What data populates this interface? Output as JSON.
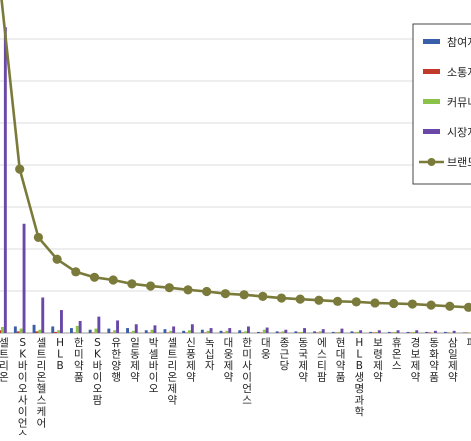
{
  "chart_data": {
    "type": "bar",
    "legend_position": "right",
    "grid": true,
    "categories": [
      "셀트리온",
      "SK바이오사이언스",
      "셀트리온헬스케어",
      "HLB",
      "한미약품",
      "SK바이오팜",
      "유한양행",
      "일동제약",
      "박셀바이오",
      "셀트리온제약",
      "신풍제약",
      "녹십자",
      "대웅제약",
      "한미사이언스",
      "대웅",
      "종근당",
      "동국제약",
      "에스티팜",
      "현대약품",
      "HLB생명과학",
      "보령제약",
      "휴온스",
      "경보제약",
      "동화약품",
      "삼일제약",
      "파마리서치"
    ],
    "visible_labels": [
      "셀트리온",
      "SK바이오사이언스",
      "셀트리온헬스케어",
      "HLB",
      "한미약품",
      "SK바이오팜",
      "유한양행",
      "일동제약",
      "박셀바이오",
      "셀트리온제약",
      "신풍제약",
      "녹십자",
      "대웅제약",
      "한미사이언스",
      "대웅",
      "종근당",
      "동국제약",
      "에스티팜",
      "현대약품",
      "HLB생명과학",
      "보령제약",
      "휴온스",
      "경보제약",
      "동화약품",
      "삼일제약",
      "파"
    ],
    "series": [
      {
        "name": "참여지",
        "color": "#3a5ea8",
        "values": [
          3.2,
          1.2,
          1.5,
          1.2,
          0.9,
          0.6,
          0.8,
          0.9,
          0.5,
          0.7,
          0.4,
          0.6,
          0.4,
          0.5,
          0.2,
          0.3,
          0.3,
          0.3,
          0.2,
          0.3,
          0.2,
          0.2,
          0.2,
          0.2,
          0.2,
          0.1
        ]
      },
      {
        "name": "소통지",
        "color": "#c0392b",
        "values": [
          0.5,
          0.3,
          0.3,
          0.2,
          0.1,
          0.1,
          0.1,
          0.1,
          0.1,
          0.1,
          0.1,
          0.1,
          0.1,
          0.1,
          0.1,
          0.1,
          0.1,
          0.1,
          0.1,
          0.1,
          0.1,
          0.1,
          0.1,
          0.1,
          0.1,
          0.1
        ]
      },
      {
        "name": "커뮤니",
        "color": "#8bc34a",
        "values": [
          1.1,
          0.8,
          0.6,
          0.5,
          1.3,
          0.8,
          0.5,
          0.4,
          0.6,
          0.4,
          0.5,
          0.4,
          0.4,
          0.3,
          0.6,
          0.3,
          0.2,
          0.3,
          0.2,
          0.2,
          0.2,
          0.2,
          0.2,
          0.1,
          0.1,
          0.1
        ]
      },
      {
        "name": "시장지",
        "color": "#6a48a8",
        "values": [
          56.0,
          20.0,
          6.5,
          4.2,
          2.2,
          3.0,
          2.3,
          1.6,
          1.4,
          1.2,
          1.6,
          0.9,
          0.9,
          1.2,
          1.0,
          0.6,
          0.9,
          0.7,
          0.8,
          0.5,
          0.5,
          0.5,
          0.5,
          0.4,
          0.4,
          0.3
        ]
      }
    ],
    "line": {
      "name": "브랜드",
      "color": "#7a7a3a",
      "values": [
        62.0,
        30.0,
        17.5,
        13.5,
        11.2,
        10.2,
        9.7,
        9.0,
        8.6,
        8.3,
        7.9,
        7.6,
        7.2,
        7.0,
        6.7,
        6.4,
        6.2,
        6.0,
        5.8,
        5.7,
        5.5,
        5.4,
        5.3,
        5.1,
        4.9,
        4.7
      ]
    },
    "ylim": [
      0,
      65
    ]
  }
}
